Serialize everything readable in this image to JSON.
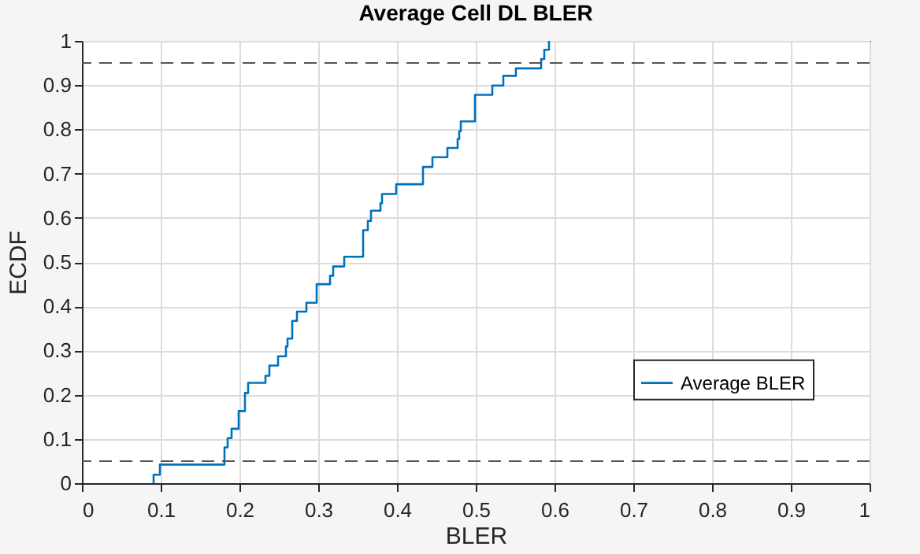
{
  "chart_data": {
    "type": "step",
    "title": "Average Cell DL BLER",
    "xlabel": "BLER",
    "ylabel": "ECDF",
    "xlim": [
      0,
      1
    ],
    "xticks": [
      0,
      0.1,
      0.2,
      0.3,
      0.4,
      0.5,
      0.6,
      0.7,
      0.8,
      0.9,
      1
    ],
    "ylim": [
      0,
      1
    ],
    "yticks": [
      0,
      0.1,
      0.2,
      0.3,
      0.4,
      0.5,
      0.6,
      0.7,
      0.8,
      0.9,
      1
    ],
    "grid": true,
    "legend": "right",
    "line_style": "solid",
    "marker": "none",
    "ref_lines": [
      {
        "axis": "y",
        "value": 0.05,
        "color": "#555555",
        "line_style": "dashed"
      },
      {
        "axis": "y",
        "value": 0.95,
        "color": "#555555",
        "line_style": "dashed"
      }
    ],
    "series": [
      {
        "name": "Average BLER",
        "color": "#0072bd",
        "x": [
          0.091,
          0.091,
          0.099,
          0.181,
          0.185,
          0.19,
          0.199,
          0.207,
          0.211,
          0.233,
          0.238,
          0.249,
          0.259,
          0.261,
          0.267,
          0.273,
          0.285,
          0.298,
          0.315,
          0.319,
          0.333,
          0.357,
          0.363,
          0.367,
          0.379,
          0.381,
          0.399,
          0.433,
          0.445,
          0.464,
          0.477,
          0.479,
          0.481,
          0.499,
          0.521,
          0.535,
          0.551,
          0.583,
          0.587,
          0.593
        ],
        "values": [
          0,
          0.019,
          0.042,
          0.081,
          0.102,
          0.123,
          0.163,
          0.204,
          0.227,
          0.243,
          0.266,
          0.287,
          0.309,
          0.327,
          0.367,
          0.388,
          0.408,
          0.45,
          0.469,
          0.49,
          0.512,
          0.572,
          0.593,
          0.616,
          0.633,
          0.654,
          0.676,
          0.715,
          0.737,
          0.758,
          0.778,
          0.796,
          0.818,
          0.878,
          0.899,
          0.921,
          0.938,
          0.959,
          0.98,
          1
        ]
      }
    ]
  }
}
